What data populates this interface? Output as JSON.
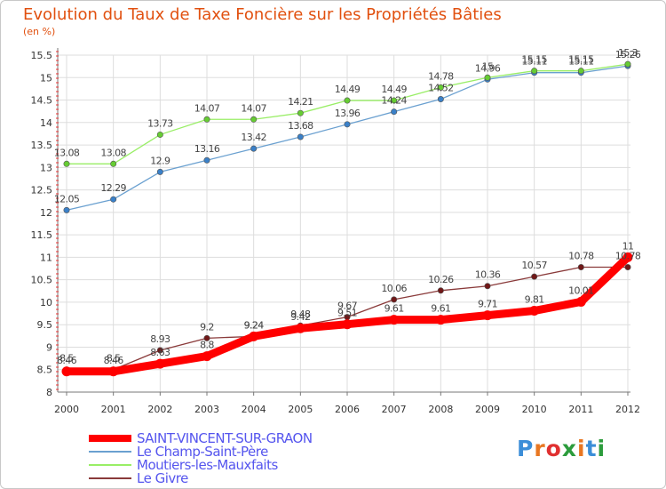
{
  "title": "Evolution du Taux de Taxe Foncière sur les Propriétés Bâties",
  "unit_label": "(en %)",
  "logo": {
    "text": "Proxiti",
    "colors": [
      "#3b8ed8",
      "#e87722",
      "#e03030",
      "#2c9c3c",
      "#e87722",
      "#3b8ed8",
      "#2c9c3c"
    ]
  },
  "chart_data": {
    "type": "line",
    "x": [
      "2000",
      "2001",
      "2002",
      "2003",
      "2004",
      "2005",
      "2006",
      "2007",
      "2008",
      "2009",
      "2010",
      "2011",
      "2012"
    ],
    "ylim": [
      8,
      15.5
    ],
    "yticks": [
      "8",
      "8.5",
      "9",
      "9.5",
      "10",
      "10.5",
      "11",
      "11.5",
      "12",
      "12.5",
      "13",
      "13.5",
      "14",
      "14.5",
      "15",
      "15.5"
    ],
    "grid": true,
    "legend_position": "bottom-left",
    "series": [
      {
        "name": "SAINT-VINCENT-SUR-GRAON",
        "color": "#ff0000",
        "marker": "#ff0000",
        "values": [
          8.46,
          8.46,
          8.63,
          8.8,
          9.24,
          9.42,
          9.51,
          9.61,
          9.61,
          9.71,
          9.81,
          10.01,
          11
        ],
        "labels": [
          "8.46",
          "8.46",
          "8.63",
          "8.8",
          "9.24",
          "9.42",
          "9.51",
          "9.61",
          "9.61",
          "9.71",
          "9.81",
          "10.01",
          "11"
        ]
      },
      {
        "name": "Le Champ-Saint-Père",
        "color": "#6aa0d0",
        "marker": "#3a80c8",
        "values": [
          12.05,
          12.29,
          12.9,
          13.16,
          13.42,
          13.68,
          13.96,
          14.24,
          14.52,
          14.96,
          15.11,
          15.11,
          15.26
        ],
        "labels": [
          "12.05",
          "12.29",
          "12.9",
          "13.16",
          "13.42",
          "13.68",
          "13.96",
          "14.24",
          "14.52",
          "14.96",
          "15.11",
          "15.11",
          "15.26"
        ]
      },
      {
        "name": "Moutiers-les-Mauxfaits",
        "color": "#99ee66",
        "marker": "#66cc33",
        "values": [
          13.08,
          13.08,
          13.73,
          14.07,
          14.07,
          14.21,
          14.49,
          14.49,
          14.78,
          15,
          15.15,
          15.15,
          15.3
        ],
        "labels": [
          "13.08",
          "13.08",
          "13.73",
          "14.07",
          "14.07",
          "14.21",
          "14.49",
          "14.49",
          "14.78",
          "15",
          "15.15",
          "15.15",
          "15.3"
        ]
      },
      {
        "name": "Le Givre",
        "color": "#8a3a3a",
        "marker": "#701818",
        "values": [
          8.5,
          8.5,
          8.93,
          9.2,
          9.24,
          9.48,
          9.67,
          10.06,
          10.26,
          10.36,
          10.57,
          10.78,
          10.78
        ],
        "labels": [
          "8.5",
          "8.5",
          "8.93",
          "9.2",
          "9.24",
          "9.48",
          "9.67",
          "10.06",
          "10.26",
          "10.36",
          "10.57",
          "10.78",
          "10.78"
        ]
      }
    ]
  }
}
